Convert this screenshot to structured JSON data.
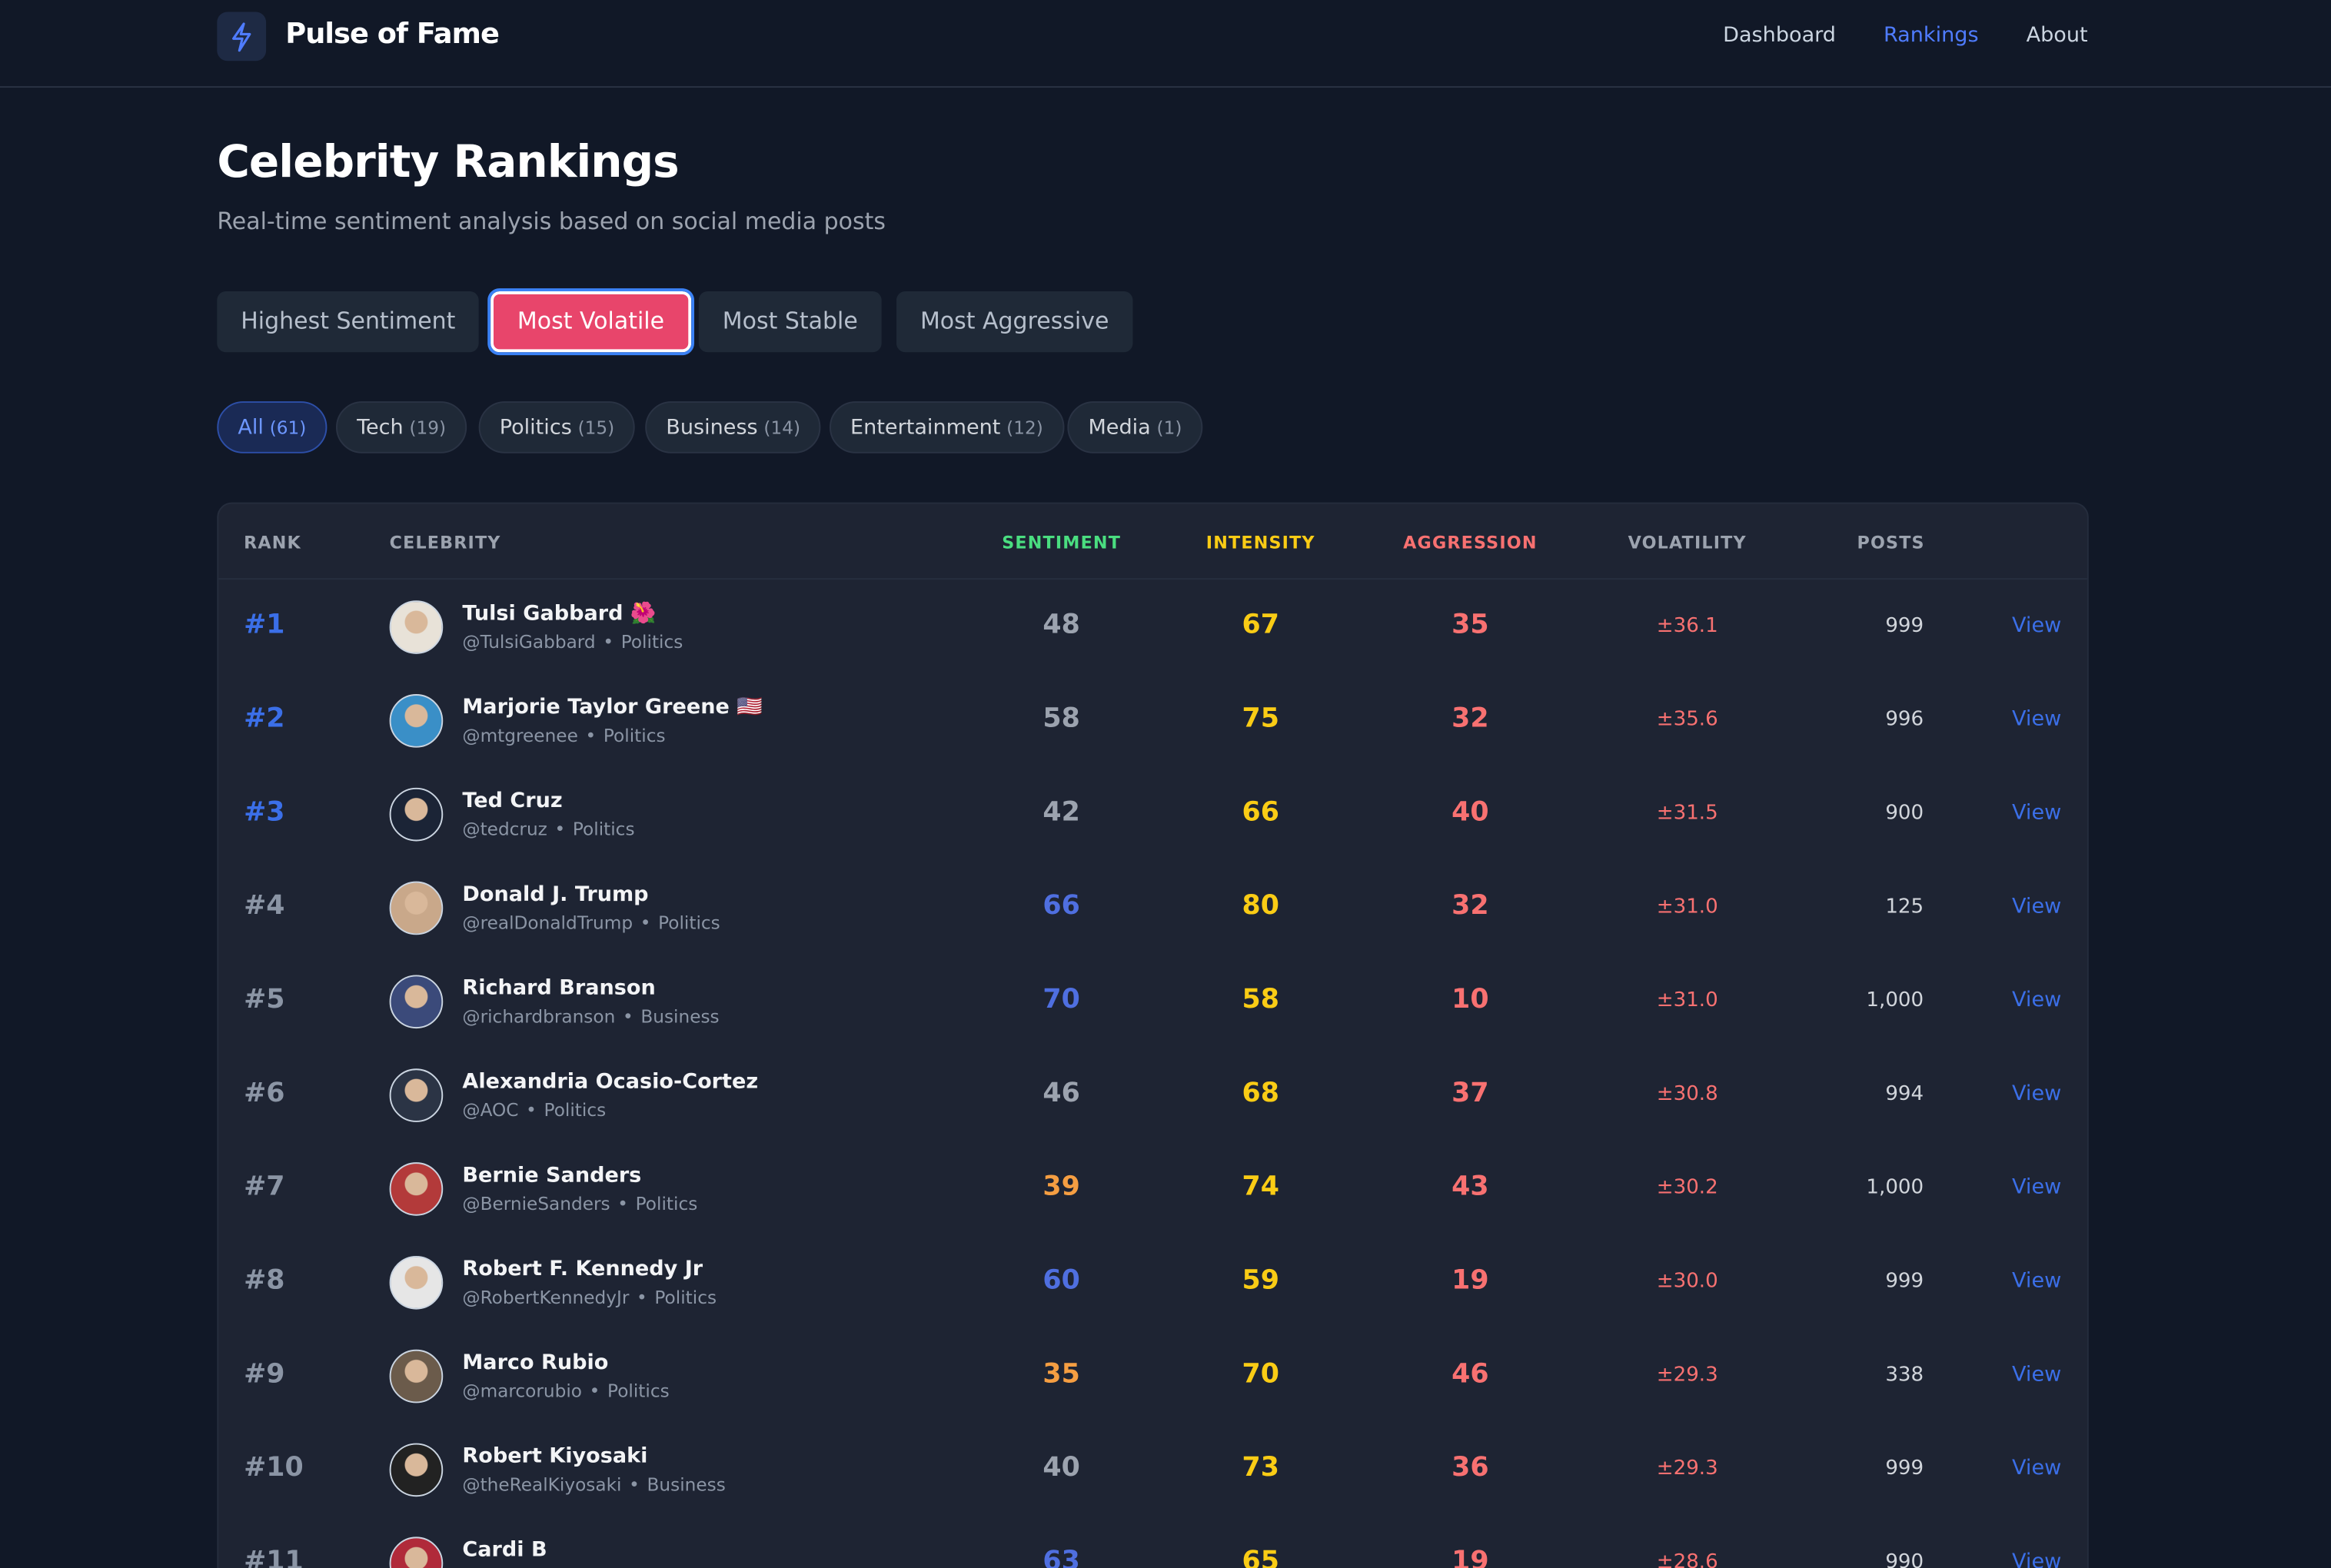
{
  "nav": {
    "brand": "Pulse of Fame",
    "links": [
      "Dashboard",
      "Rankings",
      "About"
    ],
    "active": 1
  },
  "header": {
    "title": "Celebrity Rankings",
    "subtitle": "Real-time sentiment analysis based on social media posts"
  },
  "tabs": {
    "items": [
      "Highest Sentiment",
      "Most Volatile",
      "Most Stable",
      "Most Aggressive"
    ],
    "active": 1
  },
  "filters": {
    "items": [
      {
        "label": "All",
        "count": "(61)"
      },
      {
        "label": "Tech",
        "count": "(19)"
      },
      {
        "label": "Politics",
        "count": "(15)"
      },
      {
        "label": "Business",
        "count": "(14)"
      },
      {
        "label": "Entertainment",
        "count": "(12)"
      },
      {
        "label": "Media",
        "count": "(1)"
      }
    ],
    "active": 0
  },
  "table": {
    "columns": [
      "RANK",
      "CELEBRITY",
      "SENTIMENT",
      "INTENSITY",
      "AGGRESSION",
      "VOLATILITY",
      "POSTS"
    ],
    "rows": [
      {
        "rank": "#1",
        "name": "Tulsi Gabbard 🌺",
        "handle": "@TulsiGabbard",
        "category": "Politics",
        "sentiment": "48",
        "intensity": "67",
        "aggression": "35",
        "volatility": "±36.1",
        "posts": "999",
        "action": "View"
      },
      {
        "rank": "#2",
        "name": "Marjorie Taylor Greene 🇺🇸",
        "handle": "@mtgreenee",
        "category": "Politics",
        "sentiment": "58",
        "intensity": "75",
        "aggression": "32",
        "volatility": "±35.6",
        "posts": "996",
        "action": "View"
      },
      {
        "rank": "#3",
        "name": "Ted Cruz",
        "handle": "@tedcruz",
        "category": "Politics",
        "sentiment": "42",
        "intensity": "66",
        "aggression": "40",
        "volatility": "±31.5",
        "posts": "900",
        "action": "View"
      },
      {
        "rank": "#4",
        "name": "Donald J. Trump",
        "handle": "@realDonaldTrump",
        "category": "Politics",
        "sentiment": "66",
        "intensity": "80",
        "aggression": "32",
        "volatility": "±31.0",
        "posts": "125",
        "action": "View"
      },
      {
        "rank": "#5",
        "name": "Richard Branson",
        "handle": "@richardbranson",
        "category": "Business",
        "sentiment": "70",
        "intensity": "58",
        "aggression": "10",
        "volatility": "±31.0",
        "posts": "1,000",
        "action": "View"
      },
      {
        "rank": "#6",
        "name": "Alexandria Ocasio-Cortez",
        "handle": "@AOC",
        "category": "Politics",
        "sentiment": "46",
        "intensity": "68",
        "aggression": "37",
        "volatility": "±30.8",
        "posts": "994",
        "action": "View"
      },
      {
        "rank": "#7",
        "name": "Bernie Sanders",
        "handle": "@BernieSanders",
        "category": "Politics",
        "sentiment": "39",
        "intensity": "74",
        "aggression": "43",
        "volatility": "±30.2",
        "posts": "1,000",
        "action": "View"
      },
      {
        "rank": "#8",
        "name": "Robert F. Kennedy Jr",
        "handle": "@RobertKennedyJr",
        "category": "Politics",
        "sentiment": "60",
        "intensity": "59",
        "aggression": "19",
        "volatility": "±30.0",
        "posts": "999",
        "action": "View"
      },
      {
        "rank": "#9",
        "name": "Marco Rubio",
        "handle": "@marcorubio",
        "category": "Politics",
        "sentiment": "35",
        "intensity": "70",
        "aggression": "46",
        "volatility": "±29.3",
        "posts": "338",
        "action": "View"
      },
      {
        "rank": "#10",
        "name": "Robert Kiyosaki",
        "handle": "@theRealKiyosaki",
        "category": "Business",
        "sentiment": "40",
        "intensity": "73",
        "aggression": "36",
        "volatility": "±29.3",
        "posts": "999",
        "action": "View"
      },
      {
        "rank": "#11",
        "name": "Cardi B",
        "sentiment": "63",
        "intensity": "65",
        "aggression": "19",
        "volatility": "±28.6",
        "posts": "990",
        "action": "View"
      }
    ]
  }
}
